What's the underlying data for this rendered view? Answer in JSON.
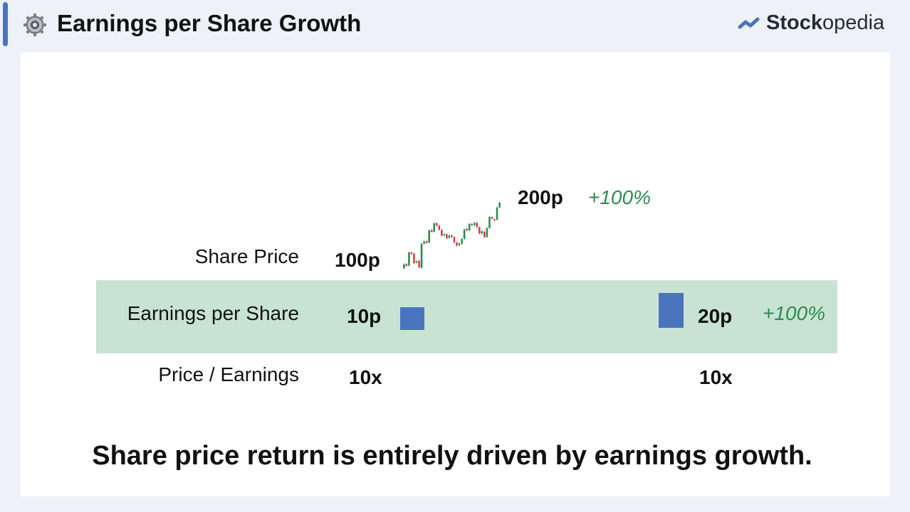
{
  "header": {
    "title": "Earnings per Share Growth",
    "icon": "gear-icon",
    "logo": {
      "bold": "Stock",
      "regular": "opedia"
    }
  },
  "rows": {
    "share_price": {
      "label": "Share Price",
      "start": "100p",
      "end": "200p",
      "change": "+100%"
    },
    "eps": {
      "label": "Earnings per Share",
      "start": "10p",
      "end": "20p",
      "change": "+100%"
    },
    "pe": {
      "label": "Price / Earnings",
      "start": "10x",
      "end": "10x"
    }
  },
  "summary": "Share price return is entirely driven by earnings growth.",
  "colors": {
    "accent": "#4a74bd",
    "band": "#c8e3d3",
    "positive": "#2e8b4e",
    "candle_up": "#2e8b4e",
    "candle_down": "#d0414f"
  }
}
